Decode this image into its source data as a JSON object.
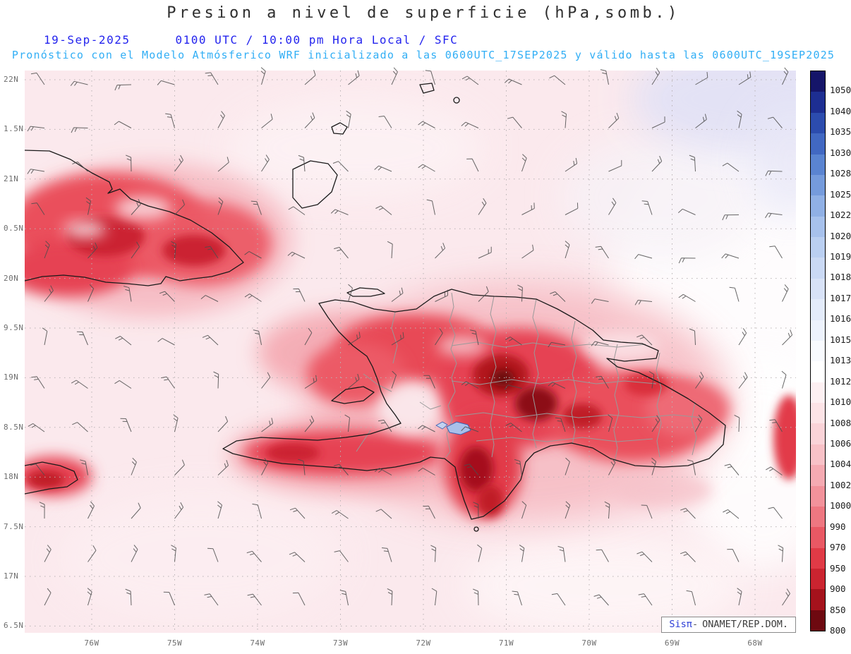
{
  "title": "Presion a nivel de superficie (hPa,somb.)",
  "subtitle": {
    "date": "19-Sep-2025",
    "time_info": "0100 UTC / 10:00 pm Hora Local / SFC",
    "model_info": "Pronóstico con el Modelo Atmósferico WRF inicializado a las 0600UTC_17SEP2025 y válido hasta las  0600UTC_19SEP2025"
  },
  "map": {
    "lat_labels": [
      "22N",
      "1.5N",
      "21N",
      "0.5N",
      "20N",
      "9.5N",
      "19N",
      "8.5N",
      "18N",
      "7.5N",
      "17N",
      "6.5N"
    ],
    "lon_labels": [
      "76W",
      "75W",
      "74W",
      "73W",
      "72W",
      "71W",
      "70W",
      "69W",
      "68W"
    ]
  },
  "colorbar": {
    "unit": "hPa",
    "values": [
      "1050",
      "1040",
      "1035",
      "1030",
      "1028",
      "1025",
      "1022",
      "1020",
      "1019",
      "1018",
      "1017",
      "1016",
      "1015",
      "1013",
      "1012",
      "1010",
      "1008",
      "1006",
      "1004",
      "1002",
      "1000",
      "990",
      "970",
      "950",
      "900",
      "850",
      "800"
    ],
    "colors": [
      "#151569",
      "#1d2e92",
      "#2c4cae",
      "#4168c2",
      "#5a84d1",
      "#759bdc",
      "#90b0e5",
      "#a7c1ec",
      "#bacff1",
      "#cad9f4",
      "#d8e2f7",
      "#e3ebfa",
      "#edf2fc",
      "#f8fafe",
      "#ffffff",
      "#fdf0f2",
      "#fce3e6",
      "#fad3d8",
      "#f8c1c7",
      "#f5aab2",
      "#f2929b",
      "#ee7781",
      "#e95864",
      "#e03a46",
      "#cb2430",
      "#a5121c",
      "#6e0910"
    ]
  },
  "branding": {
    "sis": "Sisπ",
    "sep": "-",
    "org": "ONAMET/REP.DOM."
  },
  "colors": {
    "subtitle_blue": "#2323ee",
    "model_cyan": "#31aef5",
    "coastline": "#1a1a1a",
    "province_border": "#9a9a9a",
    "lake_fill": "#a9c0ea",
    "background_tint": "#fbe9ed"
  }
}
